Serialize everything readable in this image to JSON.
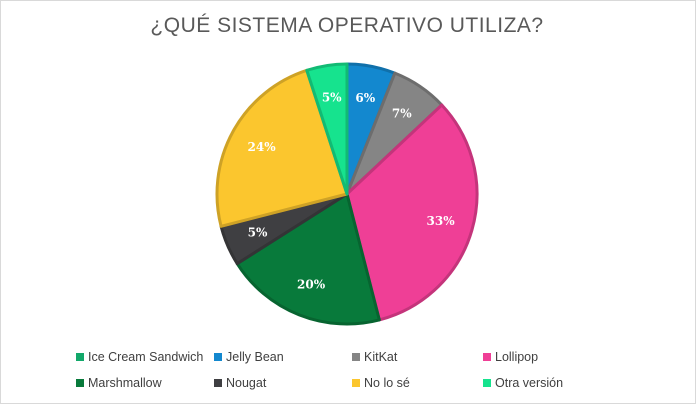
{
  "chart_data": {
    "type": "pie",
    "title": "¿QUÉ SISTEMA OPERATIVO UTILIZA?",
    "slices": [
      {
        "name": "Jelly Bean",
        "value": 6,
        "label": "6%",
        "color": "#1388cf"
      },
      {
        "name": "KitKat",
        "value": 7,
        "label": "7%",
        "color": "#858585"
      },
      {
        "name": "Lollipop",
        "value": 33,
        "label": "33%",
        "color": "#ef3f96"
      },
      {
        "name": "Marshmallow",
        "value": 20,
        "label": "20%",
        "color": "#087a3b"
      },
      {
        "name": "Nougat",
        "value": 5,
        "label": "5%",
        "color": "#3f3f42"
      },
      {
        "name": "No lo sé",
        "value": 24,
        "label": "24%",
        "color": "#fbc62e"
      },
      {
        "name": "Otra versión",
        "value": 5,
        "label": "5%",
        "color": "#16e38e"
      }
    ],
    "legend": {
      "placement": "bottom",
      "entries": [
        {
          "label": "Ice Cream Sandwich",
          "color": "#12a86a"
        },
        {
          "label": "Jelly Bean",
          "color": "#1388cf"
        },
        {
          "label": "KitKat",
          "color": "#858585"
        },
        {
          "label": "Lollipop",
          "color": "#ef3f96"
        },
        {
          "label": "Marshmallow",
          "color": "#087a3b"
        },
        {
          "label": "Nougat",
          "color": "#3f3f42"
        },
        {
          "label": "No lo sé",
          "color": "#fbc62e"
        },
        {
          "label": "Otra versión",
          "color": "#16e38e"
        }
      ]
    }
  }
}
